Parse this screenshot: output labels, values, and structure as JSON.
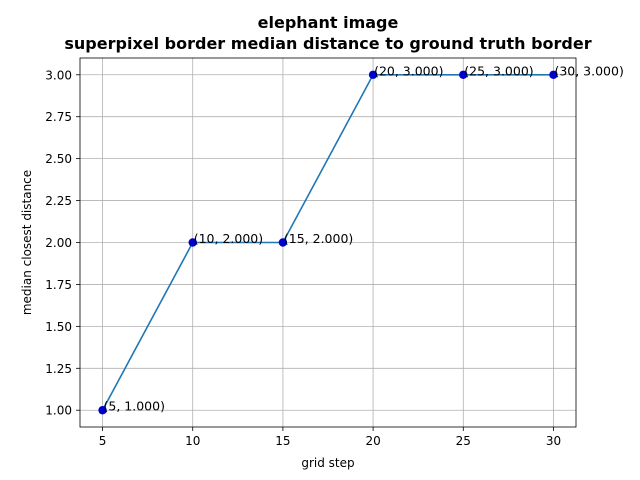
{
  "chart_data": {
    "type": "line",
    "title": "elephant image",
    "subtitle": "superpixel border median distance to ground truth border",
    "xlabel": "grid step",
    "ylabel": "median closest distance",
    "x": [
      5,
      10,
      15,
      20,
      25,
      30
    ],
    "series": [
      {
        "values": [
          1.0,
          2.0,
          2.0,
          3.0,
          3.0,
          3.0
        ],
        "color": "#1f77b4",
        "marker_color": "#0000cc"
      }
    ],
    "point_labels": [
      "(5, 1.000)",
      "(10, 2.000)",
      "(15, 2.000)",
      "(20, 3.000)",
      "(25, 3.000)",
      "(30, 3.000)"
    ],
    "xlim": [
      3.75,
      31.25
    ],
    "ylim": [
      0.9,
      3.1
    ],
    "xticks": [
      5,
      10,
      15,
      20,
      25,
      30
    ],
    "xtick_labels": [
      "5",
      "10",
      "15",
      "20",
      "25",
      "30"
    ],
    "yticks": [
      1.0,
      1.25,
      1.5,
      1.75,
      2.0,
      2.25,
      2.5,
      2.75,
      3.0
    ],
    "ytick_labels": [
      "1.00",
      "1.25",
      "1.50",
      "1.75",
      "2.00",
      "2.25",
      "2.50",
      "2.75",
      "3.00"
    ],
    "grid": true,
    "legend": false
  }
}
